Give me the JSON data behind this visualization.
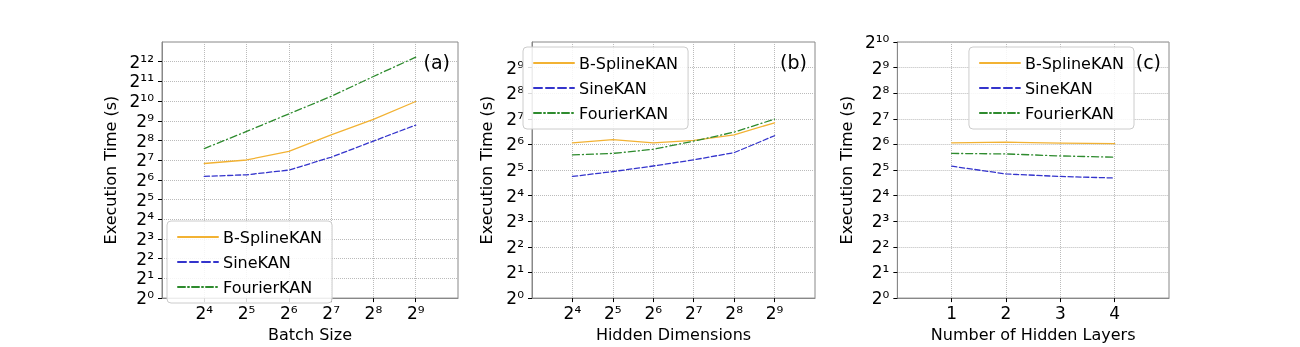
{
  "chart_data": [
    {
      "type": "line",
      "xlabel": "Batch Size",
      "ylabel": "Execution Time (s)",
      "annotations": [
        "(a)"
      ],
      "log": "xy",
      "grid": true,
      "legend": "bottom left",
      "marker": "none",
      "x": [
        16,
        32,
        64,
        128,
        256,
        512
      ],
      "xlim": [
        8,
        1024
      ],
      "xticks": [
        {
          "value": 16,
          "label": "2⁴"
        },
        {
          "value": 32,
          "label": "2⁵"
        },
        {
          "value": 64,
          "label": "2⁶"
        },
        {
          "value": 128,
          "label": "2⁷"
        },
        {
          "value": 256,
          "label": "2⁸"
        },
        {
          "value": 512,
          "label": "2⁹"
        }
      ],
      "ylim": [
        1,
        8192
      ],
      "yticks": [
        {
          "value": 1,
          "label": "2⁰"
        },
        {
          "value": 2,
          "label": "2¹"
        },
        {
          "value": 4,
          "label": "2²"
        },
        {
          "value": 8,
          "label": "2³"
        },
        {
          "value": 16,
          "label": "2⁴"
        },
        {
          "value": 32,
          "label": "2⁵"
        },
        {
          "value": 64,
          "label": "2⁶"
        },
        {
          "value": 128,
          "label": "2⁷"
        },
        {
          "value": 256,
          "label": "2⁸"
        },
        {
          "value": 512,
          "label": "2⁹"
        },
        {
          "value": 1024,
          "label": "2¹⁰"
        },
        {
          "value": 2048,
          "label": "2¹¹"
        },
        {
          "value": 4096,
          "label": "2¹²"
        }
      ],
      "series": [
        {
          "name": "B-SplineKAN",
          "color": "#f2b233",
          "line_style": "solid",
          "values": [
            114,
            129,
            175,
            313,
            537,
            1010
          ]
        },
        {
          "name": "SineKAN",
          "color": "#3434cc",
          "line_style": "dashed",
          "values": [
            72.5,
            76.6,
            90.5,
            142,
            251,
            440
          ]
        },
        {
          "name": "FourierKAN",
          "color": "#2e8b2e",
          "line_style": "dashdot",
          "values": [
            193,
            352,
            653,
            1209,
            2435,
            4804
          ]
        }
      ]
    },
    {
      "type": "line",
      "xlabel": "Hidden Dimensions",
      "ylabel": "Execution Time (s)",
      "annotations": [
        "(b)"
      ],
      "log": "xy",
      "grid": true,
      "legend": "top left",
      "marker": "none",
      "x": [
        16,
        32,
        64,
        128,
        256,
        512
      ],
      "xlim": [
        8,
        1024
      ],
      "xticks": [
        {
          "value": 16,
          "label": "2⁴"
        },
        {
          "value": 32,
          "label": "2⁵"
        },
        {
          "value": 64,
          "label": "2⁶"
        },
        {
          "value": 128,
          "label": "2⁷"
        },
        {
          "value": 256,
          "label": "2⁸"
        },
        {
          "value": 512,
          "label": "2⁹"
        }
      ],
      "ylim": [
        1,
        1024
      ],
      "yticks": [
        {
          "value": 1,
          "label": "2⁰"
        },
        {
          "value": 2,
          "label": "2¹"
        },
        {
          "value": 4,
          "label": "2²"
        },
        {
          "value": 8,
          "label": "2³"
        },
        {
          "value": 16,
          "label": "2⁴"
        },
        {
          "value": 32,
          "label": "2⁵"
        },
        {
          "value": 64,
          "label": "2⁶"
        },
        {
          "value": 128,
          "label": "2⁷"
        },
        {
          "value": 256,
          "label": "2⁸"
        },
        {
          "value": 512,
          "label": "2⁹"
        }
      ],
      "series": [
        {
          "name": "B-SplineKAN",
          "color": "#f2b233",
          "line_style": "solid",
          "values": [
            66.8,
            73.0,
            66.8,
            71.5,
            83.0,
            115
          ]
        },
        {
          "name": "SineKAN",
          "color": "#3434cc",
          "line_style": "dashed",
          "values": [
            26.9,
            30.7,
            35.7,
            42.2,
            51.3,
            81.0
          ]
        },
        {
          "name": "FourierKAN",
          "color": "#2e8b2e",
          "line_style": "dashdot",
          "values": [
            48.2,
            50.2,
            56.1,
            70.0,
            89.3,
            127
          ]
        }
      ]
    },
    {
      "type": "line",
      "xlabel": "Number of Hidden Layers",
      "ylabel": "Execution Time (s)",
      "annotations": [
        "(c)"
      ],
      "log": "y",
      "grid": true,
      "legend": "top right",
      "marker": "none",
      "x": [
        1,
        2,
        3,
        4
      ],
      "xlim": [
        0,
        5
      ],
      "xticks": [
        1,
        2,
        3,
        4
      ],
      "ylim": [
        1,
        1024
      ],
      "yticks": [
        {
          "value": 1,
          "label": "2⁰"
        },
        {
          "value": 2,
          "label": "2¹"
        },
        {
          "value": 4,
          "label": "2²"
        },
        {
          "value": 8,
          "label": "2³"
        },
        {
          "value": 16,
          "label": "2⁴"
        },
        {
          "value": 32,
          "label": "2⁵"
        },
        {
          "value": 64,
          "label": "2⁶"
        },
        {
          "value": 128,
          "label": "2⁷"
        },
        {
          "value": 256,
          "label": "2⁸"
        },
        {
          "value": 512,
          "label": "2⁹"
        },
        {
          "value": 1024,
          "label": "2¹⁰"
        }
      ],
      "series": [
        {
          "name": "B-SplineKAN",
          "color": "#f2b233",
          "line_style": "solid",
          "values": [
            66.8,
            68.1,
            66.3,
            65.3
          ]
        },
        {
          "name": "SineKAN",
          "color": "#3434cc",
          "line_style": "dashed",
          "values": [
            35.5,
            28.8,
            26.9,
            25.8
          ]
        },
        {
          "name": "FourierKAN",
          "color": "#2e8b2e",
          "line_style": "dashdot",
          "values": [
            50.2,
            49.5,
            46.9,
            45.3
          ]
        }
      ]
    }
  ]
}
